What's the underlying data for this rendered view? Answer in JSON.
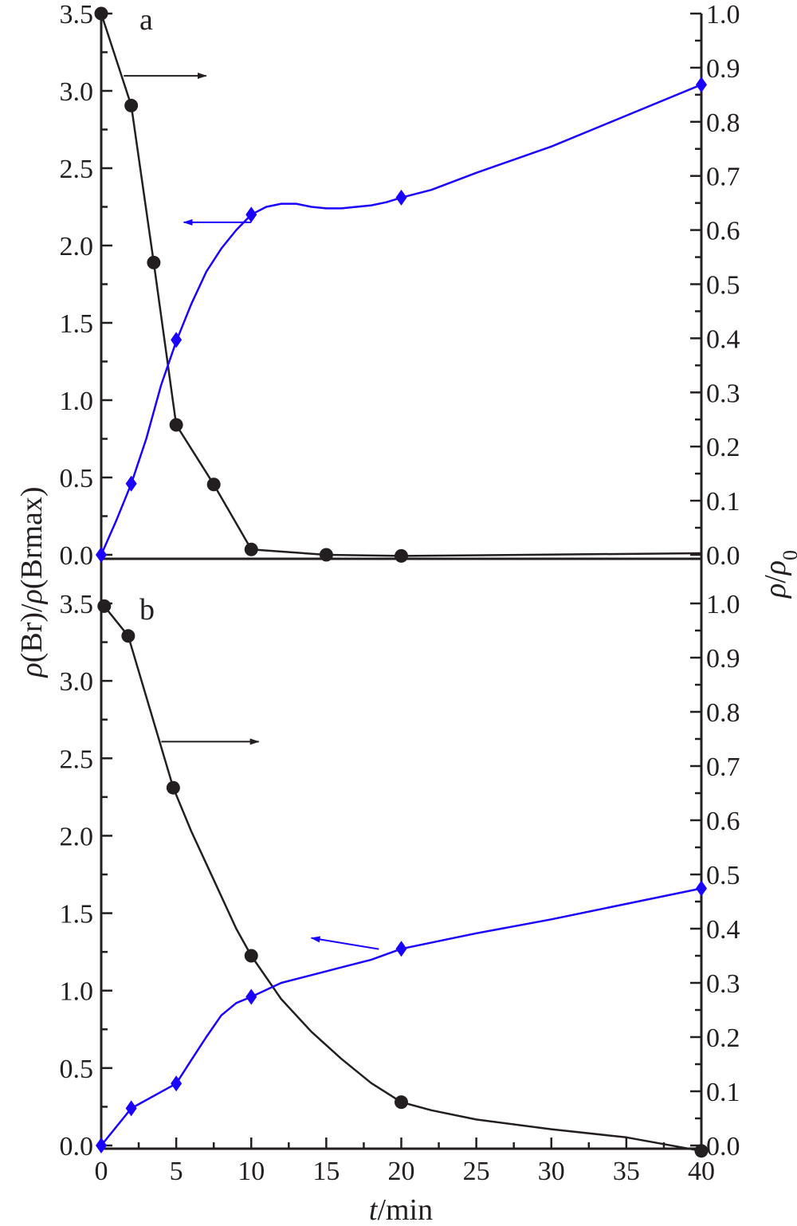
{
  "colors": {
    "axis": "#231f20",
    "black_series": "#231f20",
    "blue_series": "#1a00ff"
  },
  "axes": {
    "left_ylabel_parts": [
      "ρ",
      "(Br)/",
      "ρ",
      "(Brmax)"
    ],
    "right_ylabel_parts": [
      "ρ",
      "/",
      "ρ",
      "0"
    ],
    "xlabel_parts": [
      "t",
      "/min"
    ]
  },
  "chart_data": [
    {
      "type": "line",
      "panel_label": "a",
      "x_ticks": [
        "0",
        "5",
        "10",
        "15",
        "20",
        "25",
        "30",
        "35",
        "40"
      ],
      "xlim": [
        0,
        40
      ],
      "y_left_ticks": [
        "0.0",
        "0.5",
        "1.0",
        "1.5",
        "2.0",
        "2.5",
        "3.0",
        "3.5"
      ],
      "y_left_lim": [
        0,
        3.5
      ],
      "y_right_ticks": [
        "0.0",
        "0.1",
        "0.2",
        "0.3",
        "0.4",
        "0.5",
        "0.6",
        "0.7",
        "0.8",
        "0.9",
        "1.0"
      ],
      "y_right_lim": [
        0,
        1.0
      ],
      "series": [
        {
          "color": "#231f20",
          "marker": "circle",
          "axis": "right",
          "x": [
            0,
            2,
            3.5,
            5,
            7.5,
            10,
            15,
            20
          ],
          "y": [
            1.0,
            0.83,
            0.54,
            0.24,
            0.13,
            0.01,
            0.0,
            -0.002
          ],
          "curve_x": [
            0,
            2,
            3.5,
            5,
            7.5,
            10,
            15,
            20,
            40
          ],
          "curve_y": [
            1.0,
            0.83,
            0.54,
            0.24,
            0.13,
            0.01,
            0.0,
            -0.002,
            0.003
          ]
        },
        {
          "color": "#1a00ff",
          "marker": "diamond",
          "axis": "left",
          "x": [
            0,
            2,
            5,
            10,
            20,
            40
          ],
          "y": [
            0.0,
            0.46,
            1.39,
            2.2,
            2.31,
            3.04
          ],
          "curve_x": [
            0,
            1,
            2,
            3,
            4,
            5,
            6,
            7,
            8,
            9,
            10,
            11,
            12,
            13,
            14,
            15,
            16,
            17,
            18,
            19,
            20,
            22,
            25,
            30,
            35,
            40
          ],
          "curve_y": [
            0.0,
            0.22,
            0.46,
            0.75,
            1.1,
            1.38,
            1.62,
            1.83,
            1.98,
            2.1,
            2.2,
            2.25,
            2.27,
            2.27,
            2.25,
            2.24,
            2.24,
            2.25,
            2.26,
            2.28,
            2.31,
            2.36,
            2.47,
            2.64,
            2.84,
            3.04
          ]
        }
      ],
      "annotations": [
        {
          "points_to": "right",
          "x_from": 1.5,
          "x_to": 7,
          "y_right": 0.885
        },
        {
          "points_to": "left",
          "x_from": 10,
          "x_to": 5.5,
          "y_left": 2.15
        }
      ]
    },
    {
      "type": "line",
      "panel_label": "b",
      "x_ticks": [
        "0",
        "5",
        "10",
        "15",
        "20",
        "25",
        "30",
        "35",
        "40"
      ],
      "xlim": [
        0,
        40
      ],
      "y_left_ticks": [
        "0.0",
        "0.5",
        "1.0",
        "1.5",
        "2.0",
        "2.5",
        "3.0",
        "3.5"
      ],
      "y_left_lim": [
        0,
        3.5
      ],
      "y_right_ticks": [
        "0.0",
        "0.1",
        "0.2",
        "0.3",
        "0.4",
        "0.5",
        "0.6",
        "0.7",
        "0.8",
        "0.9",
        "1.0"
      ],
      "y_right_lim": [
        0,
        1.0
      ],
      "series": [
        {
          "color": "#231f20",
          "marker": "circle",
          "axis": "right",
          "x": [
            0.2,
            1.8,
            4.8,
            10,
            20,
            40
          ],
          "y": [
            0.995,
            0.94,
            0.66,
            0.35,
            0.08,
            -0.01
          ],
          "curve_x": [
            0.2,
            1.8,
            4.8,
            6,
            7.5,
            9,
            10,
            12,
            14,
            16,
            18,
            20,
            22,
            25,
            30,
            35,
            40
          ],
          "curve_y": [
            0.995,
            0.94,
            0.66,
            0.58,
            0.49,
            0.4,
            0.35,
            0.27,
            0.21,
            0.16,
            0.115,
            0.08,
            0.065,
            0.048,
            0.03,
            0.015,
            -0.01
          ]
        },
        {
          "color": "#1a00ff",
          "marker": "diamond",
          "axis": "left",
          "x": [
            0,
            2,
            5,
            10,
            20,
            40
          ],
          "y": [
            0.0,
            0.24,
            0.4,
            0.96,
            1.27,
            1.66
          ],
          "curve_x": [
            0,
            2,
            5,
            6,
            7,
            8,
            9,
            10,
            12,
            14,
            16,
            18,
            20,
            25,
            30,
            35,
            40
          ],
          "curve_y": [
            0.0,
            0.24,
            0.4,
            0.55,
            0.7,
            0.84,
            0.92,
            0.96,
            1.05,
            1.1,
            1.15,
            1.2,
            1.27,
            1.37,
            1.46,
            1.56,
            1.66
          ]
        }
      ],
      "annotations": [
        {
          "points_to": "right",
          "x_from": 4,
          "x_to": 10.5,
          "y_right": 0.745
        },
        {
          "points_to": "left",
          "x_from": 18.5,
          "x_to": 14,
          "y_left": 1.34
        }
      ]
    }
  ]
}
